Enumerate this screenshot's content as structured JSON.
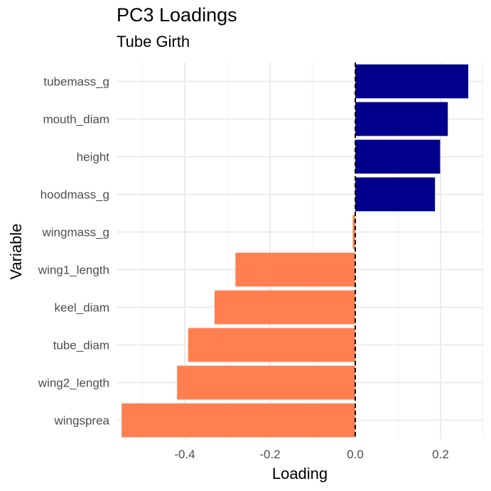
{
  "chart_data": {
    "type": "bar",
    "orientation": "horizontal",
    "title": "PC3 Loadings",
    "subtitle": "Tube Girth",
    "xlabel": "Loading",
    "ylabel": "Variable",
    "xlim": [
      -0.56,
      0.3
    ],
    "x_ticks": [
      -0.4,
      -0.2,
      0.0,
      0.2
    ],
    "x_tick_labels": [
      "-0.4",
      "-0.2",
      "0.0",
      "0.2"
    ],
    "categories": [
      "tubemass_g",
      "mouth_diam",
      "height",
      "hoodmass_g",
      "wingmass_g",
      "wing1_length",
      "keel_diam",
      "tube_diam",
      "wing2_length",
      "wingsprea"
    ],
    "values": [
      0.265,
      0.217,
      0.199,
      0.187,
      -0.006,
      -0.281,
      -0.33,
      -0.392,
      -0.418,
      -0.548
    ],
    "colors": {
      "positive": "#00008B",
      "negative": "#FF7F50"
    },
    "reference_line": {
      "x": 0.0,
      "style": "dashed"
    },
    "grid": true
  }
}
